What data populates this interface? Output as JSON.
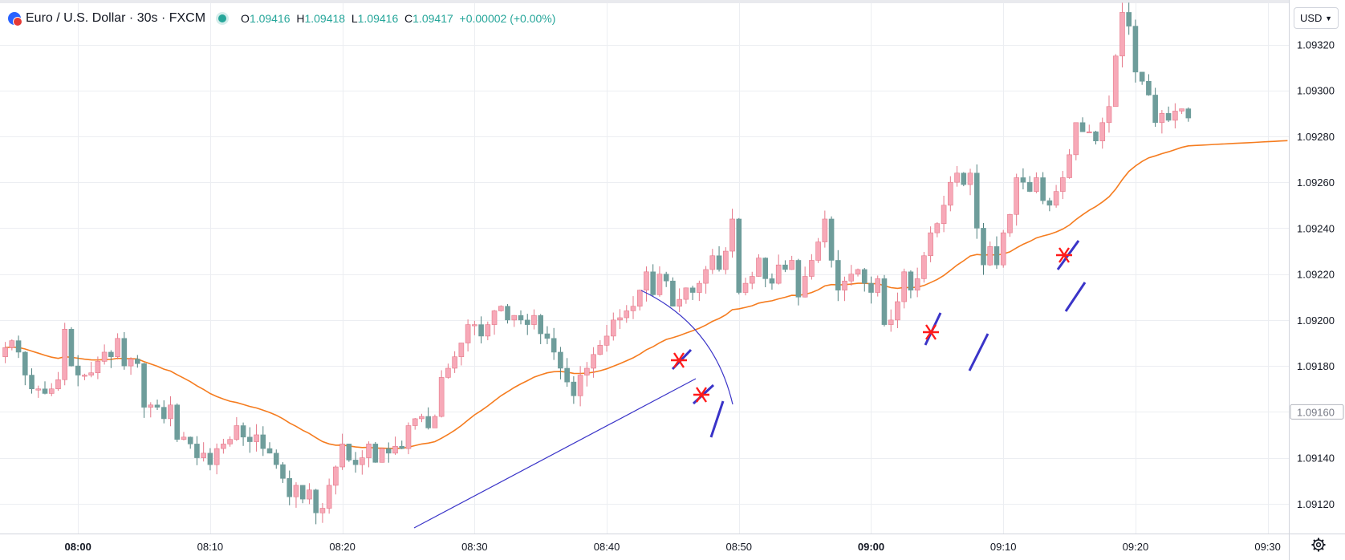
{
  "header": {
    "symbol_title": "Euro / U.S. Dollar · 30s · FXCM",
    "ohlc": {
      "o_label": "O",
      "o_value": "1.09416",
      "h_label": "H",
      "h_value": "1.09418",
      "l_label": "L",
      "l_value": "1.09416",
      "c_label": "C",
      "c_value": "1.09417",
      "change": "+0.00002 (+0.00%)"
    },
    "currency": "USD"
  },
  "colors": {
    "up": "#f7a9b8",
    "up_border": "#e57889",
    "down": "#6e9d9b",
    "wick_up": "#e57889",
    "wick_down": "#4f807e",
    "ma": "#f57c1f",
    "drawing": "#3a34c8",
    "marker": "#ff1a1a",
    "grid": "#eceef2",
    "accent": "#26a69a"
  },
  "icons": {
    "settings": "gear-icon",
    "logo": "fxcm-logo-icon",
    "status": "market-open-dot"
  },
  "chart_data": {
    "type": "candlestick",
    "timeframe": "30s",
    "x_ticks": [
      "08:00",
      "08:10",
      "08:20",
      "08:30",
      "08:40",
      "08:50",
      "09:00",
      "09:10",
      "09:20",
      "09:30"
    ],
    "x_ticks_bold": [
      "08:00",
      "09:00"
    ],
    "y_ticks": [
      "1.09120",
      "1.09140",
      "1.09160",
      "1.09180",
      "1.09200",
      "1.09220",
      "1.09240",
      "1.09260",
      "1.09280",
      "1.09300",
      "1.09320"
    ],
    "y_range": [
      1.09107,
      1.09338
    ],
    "x_range_minutes": [
      -5.9,
      91.6
    ],
    "time_origin": "08:00",
    "price_marker": "1.09160",
    "grid": true,
    "closes": [
      1.09188,
      1.09191,
      1.09186,
      1.09176,
      1.0917,
      1.0917,
      1.09168,
      1.0917,
      1.09174,
      1.09196,
      1.0918,
      1.09176,
      1.09176,
      1.09177,
      1.09182,
      1.09186,
      1.09184,
      1.09192,
      1.0918,
      1.09183,
      1.09181,
      1.09162,
      1.09163,
      1.09162,
      1.09157,
      1.09163,
      1.09148,
      1.09149,
      1.09146,
      1.0914,
      1.09142,
      1.09137,
      1.09144,
      1.09146,
      1.09148,
      1.09154,
      1.09149,
      1.09147,
      1.0915,
      1.09144,
      1.09142,
      1.09137,
      1.09131,
      1.09123,
      1.09128,
      1.09122,
      1.09126,
      1.09116,
      1.09118,
      1.09128,
      1.09136,
      1.09146,
      1.09139,
      1.09137,
      1.0914,
      1.09146,
      1.09138,
      1.09144,
      1.09142,
      1.09145,
      1.09144,
      1.09154,
      1.09157,
      1.09158,
      1.09153,
      1.09158,
      1.09175,
      1.09179,
      1.09184,
      1.0919,
      1.09198,
      1.09198,
      1.09193,
      1.09198,
      1.09204,
      1.09206,
      1.092,
      1.09202,
      1.092,
      1.09198,
      1.09202,
      1.09194,
      1.09192,
      1.09186,
      1.09179,
      1.09173,
      1.09167,
      1.09176,
      1.09179,
      1.09185,
      1.09189,
      1.09193,
      1.092,
      1.09201,
      1.09204,
      1.09206,
      1.09213,
      1.09221,
      1.09211,
      1.0922,
      1.09217,
      1.09206,
      1.09209,
      1.09214,
      1.09212,
      1.09216,
      1.09222,
      1.09228,
      1.09222,
      1.0923,
      1.09244,
      1.09212,
      1.09216,
      1.09219,
      1.09227,
      1.09218,
      1.09216,
      1.09224,
      1.09222,
      1.09226,
      1.0921,
      1.09219,
      1.09226,
      1.09234,
      1.09244,
      1.09226,
      1.09213,
      1.09217,
      1.0922,
      1.09222,
      1.09216,
      1.09212,
      1.09218,
      1.09198,
      1.092,
      1.09208,
      1.09221,
      1.09213,
      1.09218,
      1.09228,
      1.09238,
      1.09242,
      1.0925,
      1.0926,
      1.09264,
      1.09259,
      1.09264,
      1.0924,
      1.09224,
      1.09232,
      1.09224,
      1.09238,
      1.09246,
      1.09262,
      1.0926,
      1.09256,
      1.09262,
      1.09252,
      1.0925,
      1.09256,
      1.09262,
      1.09272,
      1.09286,
      1.09282,
      1.09282,
      1.09278,
      1.09286,
      1.09293,
      1.09315,
      1.09334,
      1.09328,
      1.09308,
      1.09304,
      1.09298,
      1.09286,
      1.0929,
      1.09287,
      1.09291,
      1.09292,
      1.09288
    ]
  }
}
